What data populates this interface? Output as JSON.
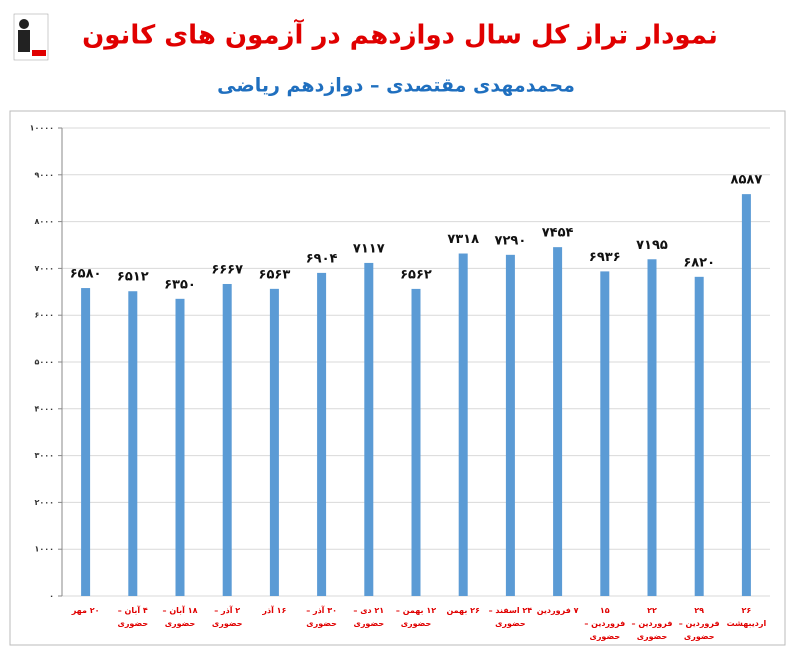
{
  "chart_data": {
    "type": "bar",
    "title": "نمودار تراز کل سال دوازدهم در آزمون های کانون",
    "subtitle": "محمدمهدی مقتصدی – دوازدهم ریاضی",
    "categories": [
      "۲۰ مهر",
      "۴ آبان – حضوری",
      "۱۸ آبان – حضوری",
      "۲ آذر – حضوری",
      "۱۶ آذر",
      "۳۰ آذر – حضوری",
      "۲۱ دی – حضوری",
      "۱۲ بهمن – حضوری",
      "۲۶ بهمن",
      "۲۴ اسفند – حضوری",
      "۷ فروردین",
      "۱۵ فروردین – حضوری",
      "۲۲ فروردین – حضوری",
      "۲۹ فروردین – حضوری",
      "۲۶ اردیبهشت"
    ],
    "values": [
      6580,
      6512,
      6350,
      6667,
      6563,
      6904,
      7117,
      6562,
      7318,
      7290,
      7454,
      6936,
      7195,
      6820,
      8587
    ],
    "value_labels": [
      "۶۵۸۰",
      "۶۵۱۲",
      "۶۳۵۰",
      "۶۶۶۷",
      "۶۵۶۳",
      "۶۹۰۴",
      "۷۱۱۷",
      "۶۵۶۲",
      "۷۳۱۸",
      "۷۲۹۰",
      "۷۴۵۴",
      "۶۹۳۶",
      "۷۱۹۵",
      "۶۸۲۰",
      "۸۵۸۷"
    ],
    "color": "#5b9bd5",
    "ylim": [
      0,
      10000
    ],
    "yticks": [
      {
        "value": 0,
        "label": "۰"
      },
      {
        "value": 1000,
        "label": "۱۰۰۰"
      },
      {
        "value": 2000,
        "label": "۲۰۰۰"
      },
      {
        "value": 3000,
        "label": "۳۰۰۰"
      },
      {
        "value": 4000,
        "label": "۴۰۰۰"
      },
      {
        "value": 5000,
        "label": "۵۰۰۰"
      },
      {
        "value": 6000,
        "label": "۶۰۰۰"
      },
      {
        "value": 7000,
        "label": "۷۰۰۰"
      },
      {
        "value": 8000,
        "label": "۸۰۰۰"
      },
      {
        "value": 9000,
        "label": "۹۰۰۰"
      },
      {
        "value": 10000,
        "label": "۱۰۰۰۰"
      }
    ],
    "grid": true
  }
}
